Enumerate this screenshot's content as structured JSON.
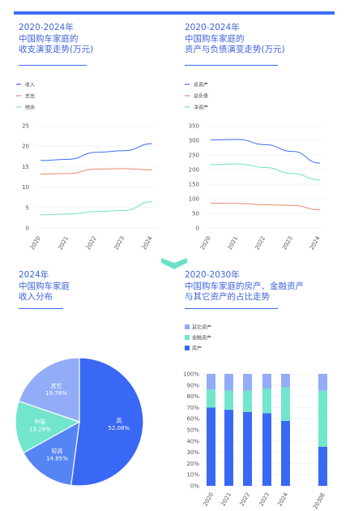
{
  "panels": {
    "p1": {
      "title": "2020-2024年\n中国购车家庭的\n收支演变走势(万元)"
    },
    "p2": {
      "title": "2020-2024年\n中国购车家庭的\n资产与负债演变走势(万元)"
    },
    "p3": {
      "title": "2024年\n中国购车家庭\n收入分布"
    },
    "p4": {
      "title": "2020-2030年\n中国购车家庭的房产、金融资产\n与其它资产的占比走势"
    }
  },
  "colors": {
    "accent": "#3c6cf3",
    "text": "#3d64d8",
    "income": "#3c6cf3",
    "expense": "#e8896b",
    "surplus": "#6fe0c6",
    "total_assets": "#3c6cf3",
    "total_debt": "#e8896b",
    "net_assets": "#6fe0c6",
    "other_assets": "#93acf7",
    "financial_assets": "#72e6cd",
    "property": "#3968f5",
    "grid": "#eef1f6"
  },
  "chart_data": [
    {
      "type": "line",
      "x": [
        "2020",
        "2021",
        "2022",
        "2023",
        "2024"
      ],
      "series": [
        {
          "name": "收入",
          "values": [
            16.5,
            16.8,
            18.5,
            18.9,
            20.6
          ]
        },
        {
          "name": "支出",
          "values": [
            13.2,
            13.3,
            14.4,
            14.5,
            14.2
          ]
        },
        {
          "name": "结余",
          "values": [
            3.2,
            3.4,
            4.0,
            4.3,
            6.4
          ]
        }
      ],
      "yticks": [
        "0",
        "5",
        "10",
        "15",
        "20",
        "25"
      ],
      "ylim": [
        0,
        25
      ]
    },
    {
      "type": "line",
      "x": [
        "2020",
        "2021",
        "2022",
        "2023",
        "2024"
      ],
      "series": [
        {
          "name": "总资产",
          "values": [
            302,
            303,
            285,
            262,
            222
          ]
        },
        {
          "name": "总负债",
          "values": [
            85,
            84,
            79,
            77,
            62
          ]
        },
        {
          "name": "净资产",
          "values": [
            217,
            219,
            207,
            186,
            164
          ]
        }
      ],
      "yticks": [
        "0",
        "50",
        "100",
        "150",
        "200",
        "250",
        "300",
        "350"
      ],
      "ylim": [
        0,
        350
      ]
    },
    {
      "type": "pie",
      "slices": [
        {
          "name": "高",
          "value": 52.08,
          "label": "52.08%",
          "color": "#3968f5"
        },
        {
          "name": "较高",
          "value": 14.85,
          "label": "14.85%",
          "color": "#5585f5"
        },
        {
          "name": "中等",
          "value": 13.29,
          "label": "13.29%",
          "color": "#72e6cd"
        },
        {
          "name": "其它",
          "value": 19.78,
          "label": "19.78%",
          "color": "#93acf7"
        }
      ]
    },
    {
      "type": "bar",
      "categories": [
        "2020",
        "2021",
        "2022",
        "2023",
        "2024",
        "2030E"
      ],
      "series": [
        {
          "name": "房产",
          "values": [
            70,
            68,
            66,
            65,
            58,
            35
          ]
        },
        {
          "name": "金融资产",
          "values": [
            16,
            17,
            19,
            22,
            30,
            50
          ]
        },
        {
          "name": "其它资产",
          "values": [
            14,
            15,
            15,
            13,
            12,
            15
          ]
        }
      ],
      "yticks": [
        "0%",
        "10%",
        "20%",
        "30%",
        "40%",
        "50%",
        "60%",
        "70%",
        "80%",
        "90%",
        "100%"
      ],
      "ylim": [
        0,
        100
      ]
    }
  ]
}
